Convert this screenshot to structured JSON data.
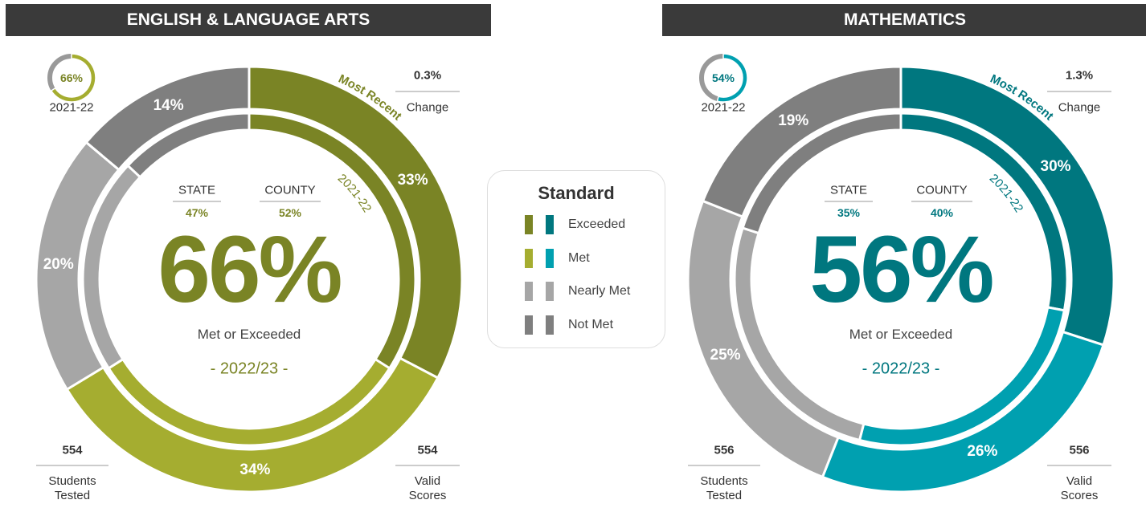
{
  "legend": {
    "title": "Standard",
    "items": [
      "Exceeded",
      "Met",
      "Nearly Met",
      "Not Met"
    ]
  },
  "chart_data": [
    {
      "type": "donut",
      "title": "ENGLISH & LANGUAGE ARTS",
      "colors": [
        "#7a8425",
        "#a5ad30",
        "#a6a6a6",
        "#7f7f7f"
      ],
      "series": [
        {
          "name": "Most Recent",
          "values": [
            33,
            34,
            20,
            14
          ],
          "value_labels": [
            "33%",
            "34%",
            "20%",
            "14%"
          ]
        },
        {
          "name": "2021-22",
          "values": [
            34,
            32,
            21,
            13
          ]
        }
      ],
      "headline": "66%",
      "headline_caption": "Met or Exceeded",
      "period": "- 2022/23 -",
      "prior": {
        "label": "2021-22",
        "value": 66,
        "value_label": "66%"
      },
      "state": {
        "name": "STATE",
        "label": "47%"
      },
      "county": {
        "name": "COUNTY",
        "label": "52%"
      },
      "change": {
        "value": "0.3%",
        "label": "Change"
      },
      "students_tested": {
        "value": 554,
        "label": "Students Tested"
      },
      "valid_scores": {
        "value": 554,
        "label": "Valid Scores"
      }
    },
    {
      "type": "donut",
      "title": "MATHEMATICS",
      "colors": [
        "#00777f",
        "#00a0b0",
        "#a6a6a6",
        "#7f7f7f"
      ],
      "series": [
        {
          "name": "Most Recent",
          "values": [
            30,
            26,
            25,
            19
          ],
          "value_labels": [
            "30%",
            "26%",
            "25%",
            "19%"
          ]
        },
        {
          "name": "2021-22",
          "values": [
            28,
            26,
            26,
            20
          ]
        }
      ],
      "headline": "56%",
      "headline_caption": "Met or Exceeded",
      "period": "- 2022/23 -",
      "prior": {
        "label": "2021-22",
        "value": 54,
        "value_label": "54%"
      },
      "state": {
        "name": "STATE",
        "label": "35%"
      },
      "county": {
        "name": "COUNTY",
        "label": "40%"
      },
      "change": {
        "value": "1.3%",
        "label": "Change"
      },
      "students_tested": {
        "value": 556,
        "label": "Students Tested"
      },
      "valid_scores": {
        "value": 556,
        "label": "Valid Scores"
      }
    }
  ]
}
